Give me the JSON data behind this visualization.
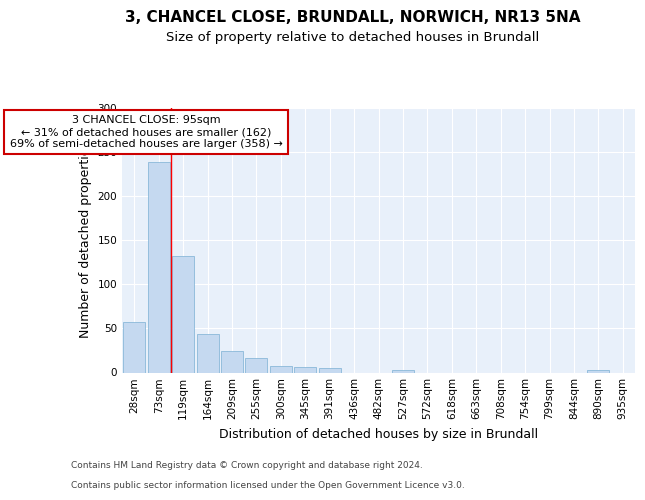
{
  "title1": "3, CHANCEL CLOSE, BRUNDALL, NORWICH, NR13 5NA",
  "title2": "Size of property relative to detached houses in Brundall",
  "xlabel": "Distribution of detached houses by size in Brundall",
  "ylabel": "Number of detached properties",
  "categories": [
    "28sqm",
    "73sqm",
    "119sqm",
    "164sqm",
    "209sqm",
    "255sqm",
    "300sqm",
    "345sqm",
    "391sqm",
    "436sqm",
    "482sqm",
    "527sqm",
    "572sqm",
    "618sqm",
    "663sqm",
    "708sqm",
    "754sqm",
    "799sqm",
    "844sqm",
    "890sqm",
    "935sqm"
  ],
  "values": [
    57,
    238,
    132,
    44,
    24,
    16,
    7,
    6,
    5,
    0,
    0,
    3,
    0,
    0,
    0,
    0,
    0,
    0,
    0,
    3,
    0
  ],
  "bar_color": "#c5d9f0",
  "bar_edge_color": "#7bafd4",
  "red_line_x": 1.5,
  "annotation_line1": "3 CHANCEL CLOSE: 95sqm",
  "annotation_line2": "← 31% of detached houses are smaller (162)",
  "annotation_line3": "69% of semi-detached houses are larger (358) →",
  "annotation_box_facecolor": "#ffffff",
  "annotation_box_edgecolor": "#cc0000",
  "footer1": "Contains HM Land Registry data © Crown copyright and database right 2024.",
  "footer2": "Contains public sector information licensed under the Open Government Licence v3.0.",
  "ylim": [
    0,
    300
  ],
  "yticks": [
    0,
    50,
    100,
    150,
    200,
    250,
    300
  ],
  "bg_color": "#ffffff",
  "plot_bg_color": "#e8f0fa",
  "grid_color": "#ffffff",
  "title1_fontsize": 11,
  "title2_fontsize": 9.5,
  "tick_fontsize": 7.5,
  "xlabel_fontsize": 9,
  "ylabel_fontsize": 9,
  "footer_fontsize": 6.5,
  "annot_fontsize": 8
}
